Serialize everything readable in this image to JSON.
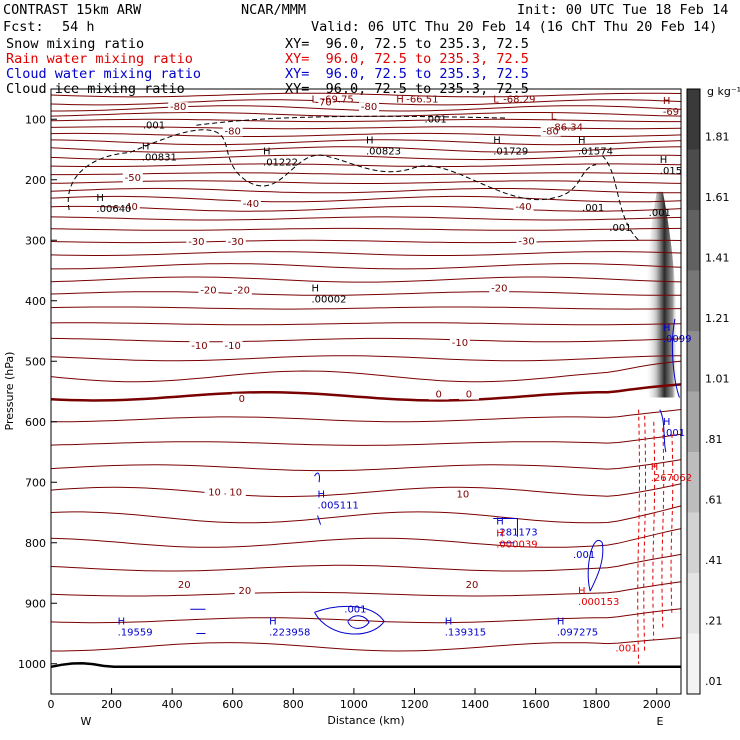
{
  "header": {
    "model": "CONTRAST 15km ARW",
    "source": "NCAR/MMM",
    "init": "Init: 00 UTC Tue 18 Feb 14",
    "fcst_label": "Fcst:",
    "fcst_value": "54 h",
    "valid": "Valid: 06 UTC Thu 20 Feb 14 (16 ChT Thu 20 Feb 14)"
  },
  "legend": [
    {
      "label": "Snow mixing ratio",
      "xy": "XY=  96.0, 72.5 to 235.3, 72.5",
      "color": "#000000"
    },
    {
      "label": "Rain water mixing ratio",
      "xy": "XY=  96.0, 72.5 to 235.3, 72.5",
      "color": "#e00000"
    },
    {
      "label": "Cloud water mixing ratio",
      "xy": "XY=  96.0, 72.5 to 235.3, 72.5",
      "color": "#0000cc"
    },
    {
      "label": "Cloud ice mixing ratio",
      "xy": "XY=  96.0, 72.5 to 235.3, 72.5",
      "color": "#000000"
    }
  ],
  "chart_data": {
    "type": "cross-section",
    "xlabel": "Distance (km)",
    "ylabel": "Pressure (hPa)",
    "xlim": [
      0,
      2080
    ],
    "ylim": [
      1050,
      50
    ],
    "x_ticks": [
      0,
      200,
      400,
      600,
      800,
      1000,
      1200,
      1400,
      1600,
      1800,
      2000
    ],
    "y_ticks": [
      100,
      200,
      300,
      400,
      500,
      600,
      700,
      800,
      900,
      1000
    ],
    "end_labels": {
      "left": "W",
      "right": "E"
    },
    "temperature_contours": [
      {
        "value": -80,
        "labels": [
          {
            "x": 420,
            "p": 80,
            "t": "-80"
          },
          {
            "x": 1050,
            "p": 80,
            "t": "-80"
          },
          {
            "x": 600,
            "p": 120,
            "t": "-80"
          },
          {
            "x": 1650,
            "p": 120,
            "t": "-80"
          }
        ]
      },
      {
        "value": -70,
        "labels": [
          {
            "x": 900,
            "p": 72,
            "t": "-70"
          }
        ]
      },
      {
        "value": -50,
        "labels": [
          {
            "x": 270,
            "p": 197,
            "t": "-50"
          }
        ]
      },
      {
        "value": -40,
        "labels": [
          {
            "x": 260,
            "p": 245,
            "t": "-40"
          },
          {
            "x": 660,
            "p": 240,
            "t": "-40"
          },
          {
            "x": 1560,
            "p": 245,
            "t": "-40"
          }
        ]
      },
      {
        "value": -30,
        "labels": [
          {
            "x": 480,
            "p": 303,
            "t": "-30"
          },
          {
            "x": 610,
            "p": 303,
            "t": "-30"
          },
          {
            "x": 1570,
            "p": 302,
            "t": "-30"
          }
        ]
      },
      {
        "value": -20,
        "labels": [
          {
            "x": 520,
            "p": 383,
            "t": "-20"
          },
          {
            "x": 630,
            "p": 383,
            "t": "-20"
          },
          {
            "x": 1480,
            "p": 380,
            "t": "-20"
          }
        ]
      },
      {
        "value": -10,
        "labels": [
          {
            "x": 490,
            "p": 475,
            "t": "-10"
          },
          {
            "x": 600,
            "p": 475,
            "t": "-10"
          },
          {
            "x": 1350,
            "p": 470,
            "t": "-10"
          }
        ]
      },
      {
        "value": 0,
        "labels": [
          {
            "x": 630,
            "p": 562,
            "t": "0"
          },
          {
            "x": 1280,
            "p": 555,
            "t": "0"
          },
          {
            "x": 1380,
            "p": 555,
            "t": "0"
          }
        ]
      },
      {
        "value": 10,
        "labels": [
          {
            "x": 540,
            "p": 717,
            "t": "10"
          },
          {
            "x": 610,
            "p": 717,
            "t": "10"
          },
          {
            "x": 1360,
            "p": 720,
            "t": "10"
          }
        ]
      },
      {
        "value": 20,
        "labels": [
          {
            "x": 440,
            "p": 870,
            "t": "20"
          },
          {
            "x": 640,
            "p": 880,
            "t": "20"
          },
          {
            "x": 1390,
            "p": 870,
            "t": "20"
          }
        ]
      }
    ],
    "annotations": [
      {
        "x": 860,
        "p": 72,
        "kind": "L",
        "text": "-69.75",
        "color": "#800000",
        "pos": "r"
      },
      {
        "x": 1140,
        "p": 72,
        "kind": "H",
        "text": "-66.51",
        "color": "#800000",
        "pos": "r"
      },
      {
        "x": 1460,
        "p": 72,
        "kind": "L",
        "text": "-68.29",
        "color": "#800000",
        "pos": "r"
      },
      {
        "x": 1650,
        "p": 100,
        "kind": "L",
        "text": "-86.34",
        "color": "#800000",
        "pos": "b"
      },
      {
        "x": 2020,
        "p": 75,
        "kind": "H",
        "text": "-69",
        "color": "#800000",
        "pos": "b"
      },
      {
        "x": 300,
        "p": 150,
        "kind": "H",
        "text": ".00831",
        "color": "#000000",
        "pos": "b"
      },
      {
        "x": 700,
        "p": 158,
        "kind": "H",
        "text": ".01222",
        "color": "#000000",
        "pos": "b"
      },
      {
        "x": 1040,
        "p": 140,
        "kind": "H",
        "text": ".00823",
        "color": "#000000",
        "pos": "b"
      },
      {
        "x": 1460,
        "p": 140,
        "kind": "H",
        "text": ".01729",
        "color": "#000000",
        "pos": "b"
      },
      {
        "x": 1740,
        "p": 140,
        "kind": "H",
        "text": ".01574",
        "color": "#000000",
        "pos": "b"
      },
      {
        "x": 2010,
        "p": 172,
        "kind": "H",
        "text": ".015",
        "color": "#000000",
        "pos": "b"
      },
      {
        "x": 150,
        "p": 235,
        "kind": "H",
        "text": ".00640",
        "color": "#000000",
        "pos": "b"
      },
      {
        "x": 860,
        "p": 385,
        "kind": "H",
        "text": ".00002",
        "color": "#000000",
        "pos": "b"
      },
      {
        "x": 2020,
        "p": 450,
        "kind": "H",
        "text": ".0099",
        "color": "#0000cc",
        "pos": "b"
      },
      {
        "x": 2020,
        "p": 605,
        "kind": "H",
        "text": ".001",
        "color": "#0000cc",
        "pos": "b"
      },
      {
        "x": 880,
        "p": 725,
        "kind": "H",
        "text": ".005111",
        "color": "#0000cc",
        "pos": "b"
      },
      {
        "x": 1470,
        "p": 770,
        "kind": "H",
        "text": ".281173",
        "color": "#0000cc",
        "pos": "b"
      },
      {
        "x": 1470,
        "p": 790,
        "kind": "H",
        "text": ".000039",
        "color": "#e00000",
        "pos": "b"
      },
      {
        "x": 1980,
        "p": 680,
        "kind": "H",
        "text": ".267062",
        "color": "#e00000",
        "pos": "b"
      },
      {
        "x": 1740,
        "p": 885,
        "kind": "H",
        "text": ".000153",
        "color": "#e00000",
        "pos": "b"
      },
      {
        "x": 220,
        "p": 935,
        "kind": "H",
        "text": ".19559",
        "color": "#0000cc",
        "pos": "b"
      },
      {
        "x": 720,
        "p": 935,
        "kind": "H",
        "text": ".223958",
        "color": "#0000cc",
        "pos": "b"
      },
      {
        "x": 1300,
        "p": 935,
        "kind": "H",
        "text": ".139315",
        "color": "#0000cc",
        "pos": "b"
      },
      {
        "x": 1670,
        "p": 935,
        "kind": "H",
        "text": ".097275",
        "color": "#0000cc",
        "pos": "b"
      },
      {
        "x": 1005,
        "p": 910,
        "kind": "",
        "text": ".001",
        "color": "#0000cc",
        "pos": "c"
      },
      {
        "x": 1760,
        "p": 820,
        "kind": "",
        "text": ".001",
        "color": "#0000cc",
        "pos": "c"
      },
      {
        "x": 1900,
        "p": 975,
        "kind": "",
        "text": ".001",
        "color": "#e00000",
        "pos": "c"
      },
      {
        "x": 1790,
        "p": 247,
        "kind": "",
        "text": ".001",
        "color": "#000000",
        "pos": "c"
      },
      {
        "x": 1880,
        "p": 280,
        "kind": "",
        "text": ".001",
        "color": "#000000",
        "pos": "c"
      },
      {
        "x": 2010,
        "p": 255,
        "kind": "",
        "text": ".001",
        "color": "#000000",
        "pos": "c"
      },
      {
        "x": 1270,
        "p": 100,
        "kind": "",
        "text": ".001",
        "color": "#000000",
        "pos": "c"
      },
      {
        "x": 340,
        "p": 110,
        "kind": "",
        "text": ".001",
        "color": "#000000",
        "pos": "c"
      }
    ],
    "colorbar": {
      "unit": "g kg⁻¹",
      "labels": [
        "1.81",
        "1.61",
        "1.41",
        "1.21",
        "1.01",
        ".81",
        ".61",
        ".41",
        ".21",
        ".01"
      ],
      "shades": [
        "#3a3a3a",
        "#4c4c4c",
        "#616161",
        "#777777",
        "#8e8e8e",
        "#a6a6a6",
        "#bdbdbd",
        "#d2d2d2",
        "#e4e4e4",
        "#f3f3f3"
      ]
    },
    "colors": {
      "temperature": "#7a0000",
      "snow": "#000000",
      "rain": "#e00000",
      "cloud_water": "#0000cc",
      "cloud_ice": "#000000"
    }
  }
}
